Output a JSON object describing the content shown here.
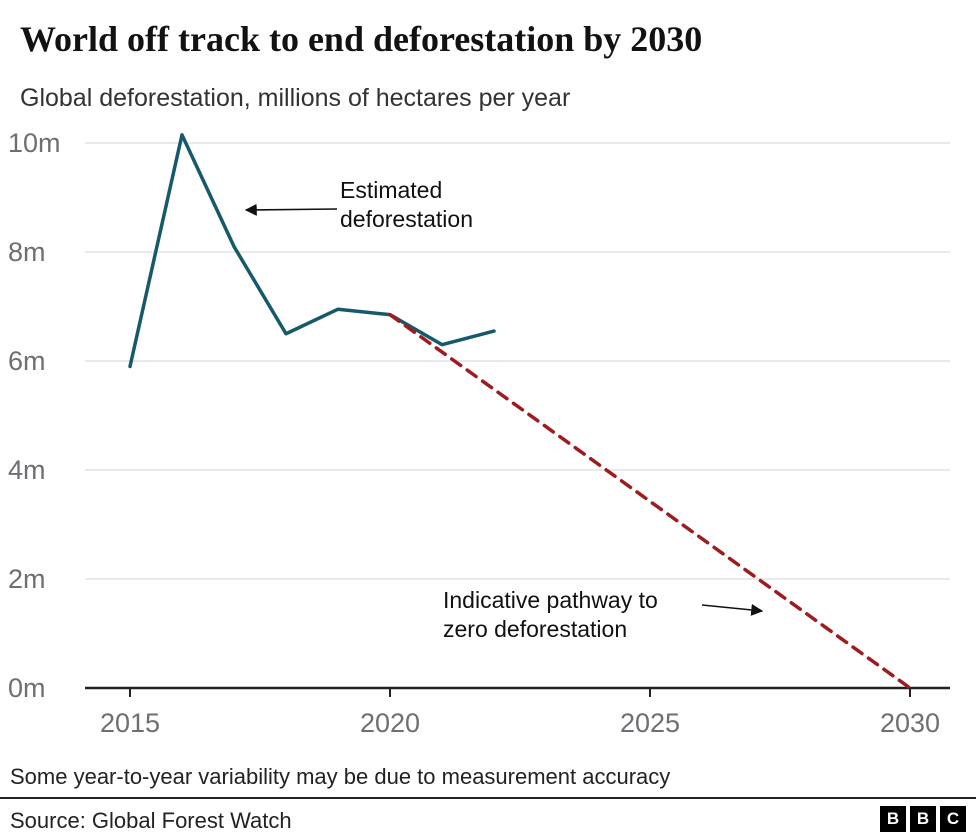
{
  "header": {
    "title": "World off track to end deforestation by 2030",
    "subtitle": "Global deforestation, millions of hectares per year"
  },
  "annotations": {
    "estimated": "Estimated deforestation",
    "pathway": "Indicative pathway to zero deforestation"
  },
  "footer": {
    "note": "Some year-to-year variability may be due to measurement accuracy",
    "source": "Source: Global Forest Watch",
    "logo_letters": [
      "B",
      "B",
      "C"
    ]
  },
  "chart_data": {
    "type": "line",
    "title": "World off track to end deforestation by 2030",
    "subtitle": "Global deforestation, millions of hectares per year",
    "xlabel": "",
    "ylabel": "Global deforestation, millions of hectares per year",
    "xlim": [
      2014.2,
      2030.8
    ],
    "ylim": [
      0,
      10.5
    ],
    "grid": "horizontal",
    "legend": "none",
    "x_ticks": [
      {
        "value": 2015,
        "label": "2015"
      },
      {
        "value": 2020,
        "label": "2020"
      },
      {
        "value": 2025,
        "label": "2025"
      },
      {
        "value": 2030,
        "label": "2030"
      }
    ],
    "y_ticks": [
      {
        "value": 0,
        "label": "0m"
      },
      {
        "value": 2,
        "label": "2m"
      },
      {
        "value": 4,
        "label": "4m"
      },
      {
        "value": 6,
        "label": "6m"
      },
      {
        "value": 8,
        "label": "8m"
      },
      {
        "value": 10,
        "label": "10m"
      }
    ],
    "colors": {
      "estimated_line": "#16596b",
      "pathway_line": "#9e1b1e",
      "grid": "#dcdcdc",
      "axis": "#222222",
      "tick_label": "#6e6e73"
    },
    "series": [
      {
        "name": "Estimated deforestation",
        "style": "solid",
        "color": "#16596b",
        "x": [
          2015,
          2016,
          2017,
          2018,
          2019,
          2020,
          2021,
          2022
        ],
        "y": [
          5.9,
          10.15,
          8.1,
          6.5,
          6.95,
          6.85,
          6.3,
          6.55
        ]
      },
      {
        "name": "Indicative pathway to zero deforestation",
        "style": "dashed",
        "color": "#9e1b1e",
        "x": [
          2020,
          2030
        ],
        "y": [
          6.85,
          0
        ]
      }
    ]
  }
}
